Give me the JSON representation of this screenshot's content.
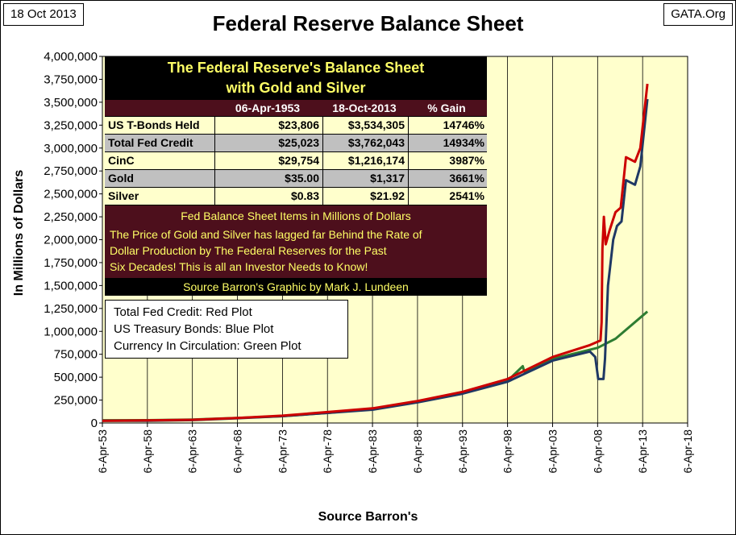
{
  "header": {
    "date": "18 Oct 2013",
    "title": "Federal Reserve Balance Sheet",
    "source_tag": "GATA.Org"
  },
  "table": {
    "title_line1": "The Federal Reserve's Balance Sheet",
    "title_line2": "with Gold and Silver",
    "col_headers": [
      "",
      "06-Apr-1953",
      "18-Oct-2013",
      "% Gain"
    ],
    "rows": [
      {
        "label": "US T-Bonds Held",
        "v1953": "$23,806",
        "v2013": "$3,534,305",
        "gain": "14746%"
      },
      {
        "label": "Total Fed Credit",
        "v1953": "$25,023",
        "v2013": "$3,762,043",
        "gain": "14934%"
      },
      {
        "label": "CinC",
        "v1953": "$29,754",
        "v2013": "$1,216,174",
        "gain": "3987%"
      },
      {
        "label": "Gold",
        "v1953": "$35.00",
        "v2013": "$1,317",
        "gain": "3661%"
      },
      {
        "label": "Silver",
        "v1953": "$0.83",
        "v2013": "$21.92",
        "gain": "2541%"
      }
    ],
    "units_note": "Fed Balance Sheet Items in Millions of Dollars",
    "note_lines": [
      "The Price of Gold and Silver has lagged far Behind the Rate of",
      "Dollar Production by The Federal Reserves for the Past",
      "Six Decades!  This is all an Investor Needs to Know!"
    ],
    "credit": "Source Barron's    Graphic by Mark J. Lundeen"
  },
  "legend_box": {
    "lines": [
      "Total Fed Credit:  Red Plot",
      "US Treasury Bonds: Blue Plot",
      "Currency In Circulation: Green Plot"
    ]
  },
  "colors": {
    "plot_bg": "#ffffcc",
    "red": "#cc0000",
    "blue": "#1f3864",
    "green": "#2e7d32",
    "grid": "#000000"
  },
  "chart_data": {
    "type": "line",
    "title": "Federal Reserve Balance Sheet",
    "xlabel": "Source Barron's",
    "ylabel": "In  Millions  of  Dollars",
    "ylim": [
      0,
      4000000
    ],
    "yticks": [
      0,
      250000,
      500000,
      750000,
      1000000,
      1250000,
      1500000,
      1750000,
      2000000,
      2250000,
      2500000,
      2750000,
      3000000,
      3250000,
      3500000,
      3750000,
      4000000
    ],
    "ytick_labels": [
      "0",
      "250,000",
      "500,000",
      "750,000",
      "1,000,000",
      "1,250,000",
      "1,500,000",
      "1,750,000",
      "2,000,000",
      "2,250,000",
      "2,500,000",
      "2,750,000",
      "3,000,000",
      "3,250,000",
      "3,500,000",
      "3,750,000",
      "4,000,000"
    ],
    "xlim": [
      "1953-04-06",
      "2018-04-06"
    ],
    "xticks": [
      "1953-04-06",
      "1958-04-06",
      "1963-04-06",
      "1968-04-06",
      "1973-04-06",
      "1978-04-06",
      "1983-04-06",
      "1988-04-06",
      "1993-04-06",
      "1998-04-06",
      "2003-04-06",
      "2008-04-06",
      "2013-04-06",
      "2018-04-06"
    ],
    "xtick_labels": [
      "6-Apr-53",
      "6-Apr-58",
      "6-Apr-63",
      "6-Apr-68",
      "6-Apr-73",
      "6-Apr-78",
      "6-Apr-83",
      "6-Apr-88",
      "6-Apr-93",
      "6-Apr-98",
      "6-Apr-03",
      "6-Apr-08",
      "6-Apr-13",
      "6-Apr-18"
    ],
    "grid": "vertical",
    "series": [
      {
        "name": "Total Fed Credit",
        "color": "#cc0000",
        "points": [
          [
            "1953-04-06",
            25023
          ],
          [
            "1958-04-06",
            28000
          ],
          [
            "1963-04-06",
            35000
          ],
          [
            "1968-04-06",
            55000
          ],
          [
            "1973-04-06",
            80000
          ],
          [
            "1978-04-06",
            120000
          ],
          [
            "1983-04-06",
            160000
          ],
          [
            "1988-04-06",
            240000
          ],
          [
            "1993-04-06",
            340000
          ],
          [
            "1998-04-06",
            480000
          ],
          [
            "2003-04-06",
            720000
          ],
          [
            "2007-06-01",
            850000
          ],
          [
            "2008-08-01",
            900000
          ],
          [
            "2008-09-15",
            1100000
          ],
          [
            "2008-10-20",
            1900000
          ],
          [
            "2008-12-15",
            2250000
          ],
          [
            "2009-03-01",
            1950000
          ],
          [
            "2009-08-01",
            2100000
          ],
          [
            "2010-04-01",
            2300000
          ],
          [
            "2010-11-01",
            2350000
          ],
          [
            "2011-06-01",
            2900000
          ],
          [
            "2012-06-01",
            2850000
          ],
          [
            "2013-01-01",
            3000000
          ],
          [
            "2013-10-18",
            3700000
          ]
        ]
      },
      {
        "name": "US Treasury Bonds",
        "color": "#1f3864",
        "points": [
          [
            "1953-04-06",
            23806
          ],
          [
            "1958-04-06",
            25000
          ],
          [
            "1963-04-06",
            32000
          ],
          [
            "1968-04-06",
            52000
          ],
          [
            "1973-04-06",
            75000
          ],
          [
            "1978-04-06",
            110000
          ],
          [
            "1983-04-06",
            145000
          ],
          [
            "1988-04-06",
            225000
          ],
          [
            "1993-04-06",
            320000
          ],
          [
            "1998-04-06",
            450000
          ],
          [
            "2003-04-06",
            680000
          ],
          [
            "2007-06-01",
            780000
          ],
          [
            "2008-01-01",
            720000
          ],
          [
            "2008-05-01",
            480000
          ],
          [
            "2008-12-01",
            480000
          ],
          [
            "2009-02-01",
            700000
          ],
          [
            "2009-06-01",
            1500000
          ],
          [
            "2010-01-01",
            2000000
          ],
          [
            "2010-06-01",
            2150000
          ],
          [
            "2010-12-01",
            2200000
          ],
          [
            "2011-06-01",
            2650000
          ],
          [
            "2012-06-01",
            2600000
          ],
          [
            "2013-01-01",
            2800000
          ],
          [
            "2013-10-18",
            3534305
          ]
        ]
      },
      {
        "name": "Currency In Circulation",
        "color": "#2e7d32",
        "points": [
          [
            "1953-04-06",
            29754
          ],
          [
            "1958-04-06",
            31000
          ],
          [
            "1963-04-06",
            38000
          ],
          [
            "1968-04-06",
            55000
          ],
          [
            "1973-04-06",
            75000
          ],
          [
            "1978-04-06",
            110000
          ],
          [
            "1983-04-06",
            155000
          ],
          [
            "1988-04-06",
            230000
          ],
          [
            "1993-04-06",
            330000
          ],
          [
            "1998-04-06",
            460000
          ],
          [
            "1999-12-15",
            620000
          ],
          [
            "2000-02-15",
            560000
          ],
          [
            "2003-04-06",
            700000
          ],
          [
            "2008-04-06",
            820000
          ],
          [
            "2010-04-06",
            920000
          ],
          [
            "2013-10-18",
            1216174
          ]
        ]
      }
    ]
  }
}
